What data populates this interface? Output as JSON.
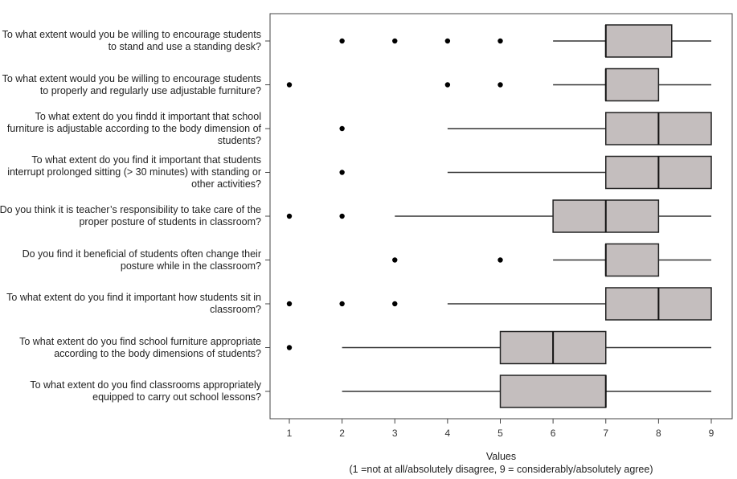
{
  "chart_data": {
    "type": "boxplot",
    "orientation": "horizontal",
    "xlabel": "Values",
    "xlabel_note": "(1 =not at all/absolutely disagree, 9 = considerably/absolutely agree)",
    "xlim": [
      1,
      9
    ],
    "xticks": [
      1,
      2,
      3,
      4,
      5,
      6,
      7,
      8,
      9
    ],
    "grid": false,
    "box_color": "#c4bebe",
    "categories": [
      {
        "label": "To what extent would you be willing to encourage students to stand and use a standing desk?",
        "whisker_low": 6,
        "q1": 7,
        "median": 7,
        "q3": 8.25,
        "whisker_high": 9,
        "outliers": [
          2,
          3,
          4,
          5
        ]
      },
      {
        "label": "To what extent would you be willing to encourage students to properly and regularly use adjustable furniture?",
        "whisker_low": 6,
        "q1": 7,
        "median": 7,
        "q3": 8,
        "whisker_high": 9,
        "outliers": [
          1,
          4,
          5
        ]
      },
      {
        "label": "To what extent do you findd it important that school furniture is adjustable according to the body dimension of students?",
        "whisker_low": 4,
        "q1": 7,
        "median": 8,
        "q3": 9,
        "whisker_high": 9,
        "outliers": [
          2
        ]
      },
      {
        "label": "To what extent do you find it important that students interrupt prolonged sitting (> 30 minutes) with standing or other activities?",
        "whisker_low": 4,
        "q1": 7,
        "median": 8,
        "q3": 9,
        "whisker_high": 9,
        "outliers": [
          2
        ]
      },
      {
        "label": "Do you think it is teacher’s responsibility to take care of the proper posture of students in classroom?",
        "whisker_low": 3,
        "q1": 6,
        "median": 7,
        "q3": 8,
        "whisker_high": 9,
        "outliers": [
          1,
          2
        ]
      },
      {
        "label": "Do you find it beneficial of students often change their posture while in the classroom?",
        "whisker_low": 6,
        "q1": 7,
        "median": 7,
        "q3": 8,
        "whisker_high": 9,
        "outliers": [
          3,
          5
        ]
      },
      {
        "label": "To what extent do you find it important how students sit in classroom?",
        "whisker_low": 4,
        "q1": 7,
        "median": 8,
        "q3": 9,
        "whisker_high": 9,
        "outliers": [
          1,
          2,
          3
        ]
      },
      {
        "label": "To what extent do you find school furniture appropriate according to the body dimensions of students?",
        "whisker_low": 2,
        "q1": 5,
        "median": 6,
        "q3": 7,
        "whisker_high": 9,
        "outliers": [
          1
        ]
      },
      {
        "label": "To what extent do you find classrooms appropriately equipped to carry out school lessons?",
        "whisker_low": 2,
        "q1": 5,
        "median": 7,
        "q3": 7,
        "whisker_high": 9,
        "outliers": []
      }
    ]
  }
}
